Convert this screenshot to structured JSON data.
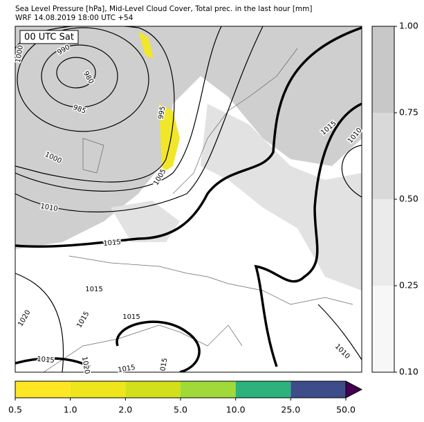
{
  "header": {
    "title": "Sea Level Pressure [hPa], Mid-Level Cloud Cover, Total prec. in the last hour [mm]",
    "subtitle": "WRF 14.08.2019 18:00 UTC +54"
  },
  "map": {
    "time_label": "00 UTC Sat",
    "isobar_labels": [
      "990",
      "980",
      "985",
      "995",
      "1000",
      "1000",
      "1005",
      "1010",
      "1015",
      "1015",
      "1010",
      "1015",
      "1015",
      "1015",
      "1020",
      "1015",
      "1010",
      "1015",
      "1020",
      "015"
    ]
  },
  "cloud_colorbar": {
    "ticks": [
      "1.00",
      "0.75",
      "0.50",
      "0.25",
      "0.10"
    ],
    "colors": [
      "#c8c8c8",
      "#d9d9d9",
      "#ebebeb",
      "#f7f7f7"
    ]
  },
  "precip_colorbar": {
    "ticks": [
      "0.5",
      "1.0",
      "2.0",
      "5.0",
      "10.0",
      "25.0",
      "50.0"
    ],
    "colors": [
      "#fde725",
      "#eee51c",
      "#d2e01b",
      "#a0da39",
      "#2db27d",
      "#3e4c8a"
    ],
    "extend_color": "#440154"
  }
}
